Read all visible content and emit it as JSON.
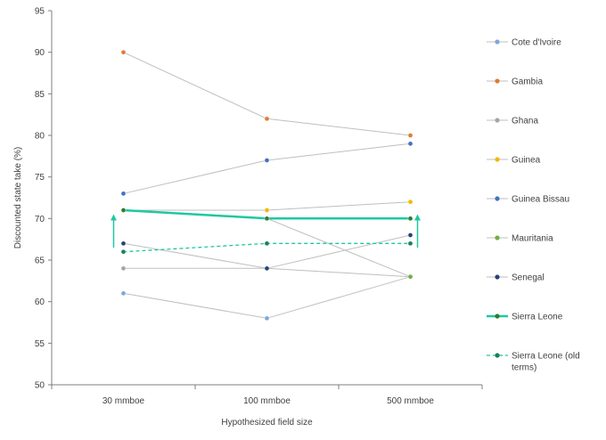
{
  "chart_data": {
    "type": "line",
    "title": "",
    "xlabel": "Hypothesized field size",
    "ylabel": "Discounted state take (%)",
    "categories": [
      "30 mmboe",
      "100 mmboe",
      "500 mmboe"
    ],
    "ylim": [
      50,
      95
    ],
    "yticks": [
      50,
      55,
      60,
      65,
      70,
      75,
      80,
      85,
      90,
      95
    ],
    "grid": false,
    "legend_position": "right",
    "series": [
      {
        "name": "Cote d'Ivoire",
        "values": [
          61,
          58,
          63
        ],
        "line_color": "#bfbfbf",
        "marker_color": "#7fa7d8",
        "style": "thin"
      },
      {
        "name": "Gambia",
        "values": [
          90,
          82,
          80
        ],
        "line_color": "#bfbfbf",
        "marker_color": "#e07b39",
        "style": "thin"
      },
      {
        "name": "Ghana",
        "values": [
          64,
          64,
          63
        ],
        "line_color": "#bfbfbf",
        "marker_color": "#a5a5a5",
        "style": "thin"
      },
      {
        "name": "Guinea",
        "values": [
          71,
          71,
          72
        ],
        "line_color": "#bfbfbf",
        "marker_color": "#f2b800",
        "style": "thin"
      },
      {
        "name": "Guinea Bissau",
        "values": [
          73,
          77,
          79
        ],
        "line_color": "#bfbfbf",
        "marker_color": "#4472c4",
        "style": "thin"
      },
      {
        "name": "Mauritania",
        "values": [
          71,
          70,
          63
        ],
        "line_color": "#bfbfbf",
        "marker_color": "#70ad47",
        "style": "thin"
      },
      {
        "name": "Senegal",
        "values": [
          67,
          64,
          68
        ],
        "line_color": "#bfbfbf",
        "marker_color": "#264478",
        "style": "thin"
      },
      {
        "name": "Sierra Leone",
        "values": [
          71,
          70,
          70
        ],
        "line_color": "#1fc8a0",
        "marker_color": "#2e7d32",
        "style": "thick"
      },
      {
        "name": "Sierra Leone (old terms)",
        "values": [
          66,
          67,
          67
        ],
        "line_color": "#1fc8a0",
        "marker_color": "#1e7f5c",
        "style": "dashed"
      }
    ],
    "annotations": [
      {
        "type": "arrow",
        "category": "30 mmboe",
        "from": 66.5,
        "to": 70.3,
        "color": "#1fc8a0"
      },
      {
        "type": "arrow",
        "category": "500 mmboe",
        "from": 66.5,
        "to": 70.3,
        "color": "#1fc8a0"
      }
    ]
  }
}
